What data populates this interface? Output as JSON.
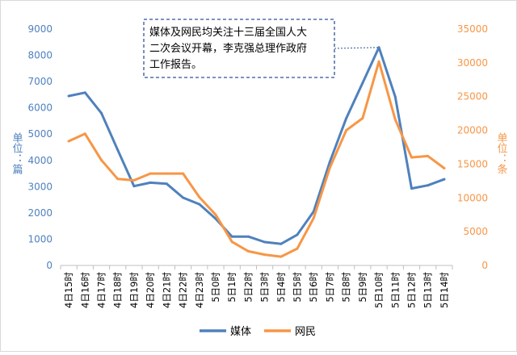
{
  "chart_data": {
    "type": "line",
    "categories": [
      "4日15时",
      "4日16时",
      "4日17时",
      "4日18时",
      "4日19时",
      "4日20时",
      "4日21时",
      "4日22时",
      "4日23时",
      "5日0时",
      "5日1时",
      "5日2时",
      "5日3时",
      "5日4时",
      "5日5时",
      "5日6时",
      "5日7时",
      "5日8时",
      "5日9时",
      "5日10时",
      "5日11时",
      "5日12时",
      "5日13时",
      "5日14时"
    ],
    "series": [
      {
        "name": "媒体",
        "axis": "left",
        "color": "#4f81bd",
        "values": [
          6450,
          6580,
          5800,
          4400,
          3020,
          3150,
          3110,
          2580,
          2330,
          1780,
          1100,
          1100,
          890,
          820,
          1170,
          2050,
          3950,
          5600,
          6950,
          8300,
          6420,
          2930,
          3050,
          3280
        ]
      },
      {
        "name": "网民",
        "axis": "right",
        "color": "#f79646",
        "values": [
          18400,
          19500,
          15600,
          12800,
          12600,
          13600,
          13600,
          13600,
          10100,
          7500,
          3500,
          2100,
          1600,
          1300,
          2500,
          7000,
          14500,
          20000,
          21800,
          30200,
          21600,
          16000,
          16200,
          14400
        ]
      }
    ],
    "y_left": {
      "label": "单位：篇",
      "ticks": [
        "0",
        "1000",
        "2000",
        "3000",
        "4000",
        "5000",
        "6000",
        "7000",
        "8000",
        "9000"
      ],
      "ylim": [
        0,
        9000
      ]
    },
    "y_right": {
      "label": "单位：条",
      "ticks": [
        "0",
        "5000",
        "10000",
        "15000",
        "20000",
        "25000",
        "30000",
        "35000"
      ],
      "ylim": [
        0,
        35000
      ]
    },
    "grid": false,
    "legend": "bottom-center",
    "annotation": {
      "text_lines": [
        "媒体及网民均关注十三届全国人大",
        "二次会议开幕，李克强总理作政府",
        "工作报告。"
      ],
      "points_to": "5日10时"
    }
  }
}
